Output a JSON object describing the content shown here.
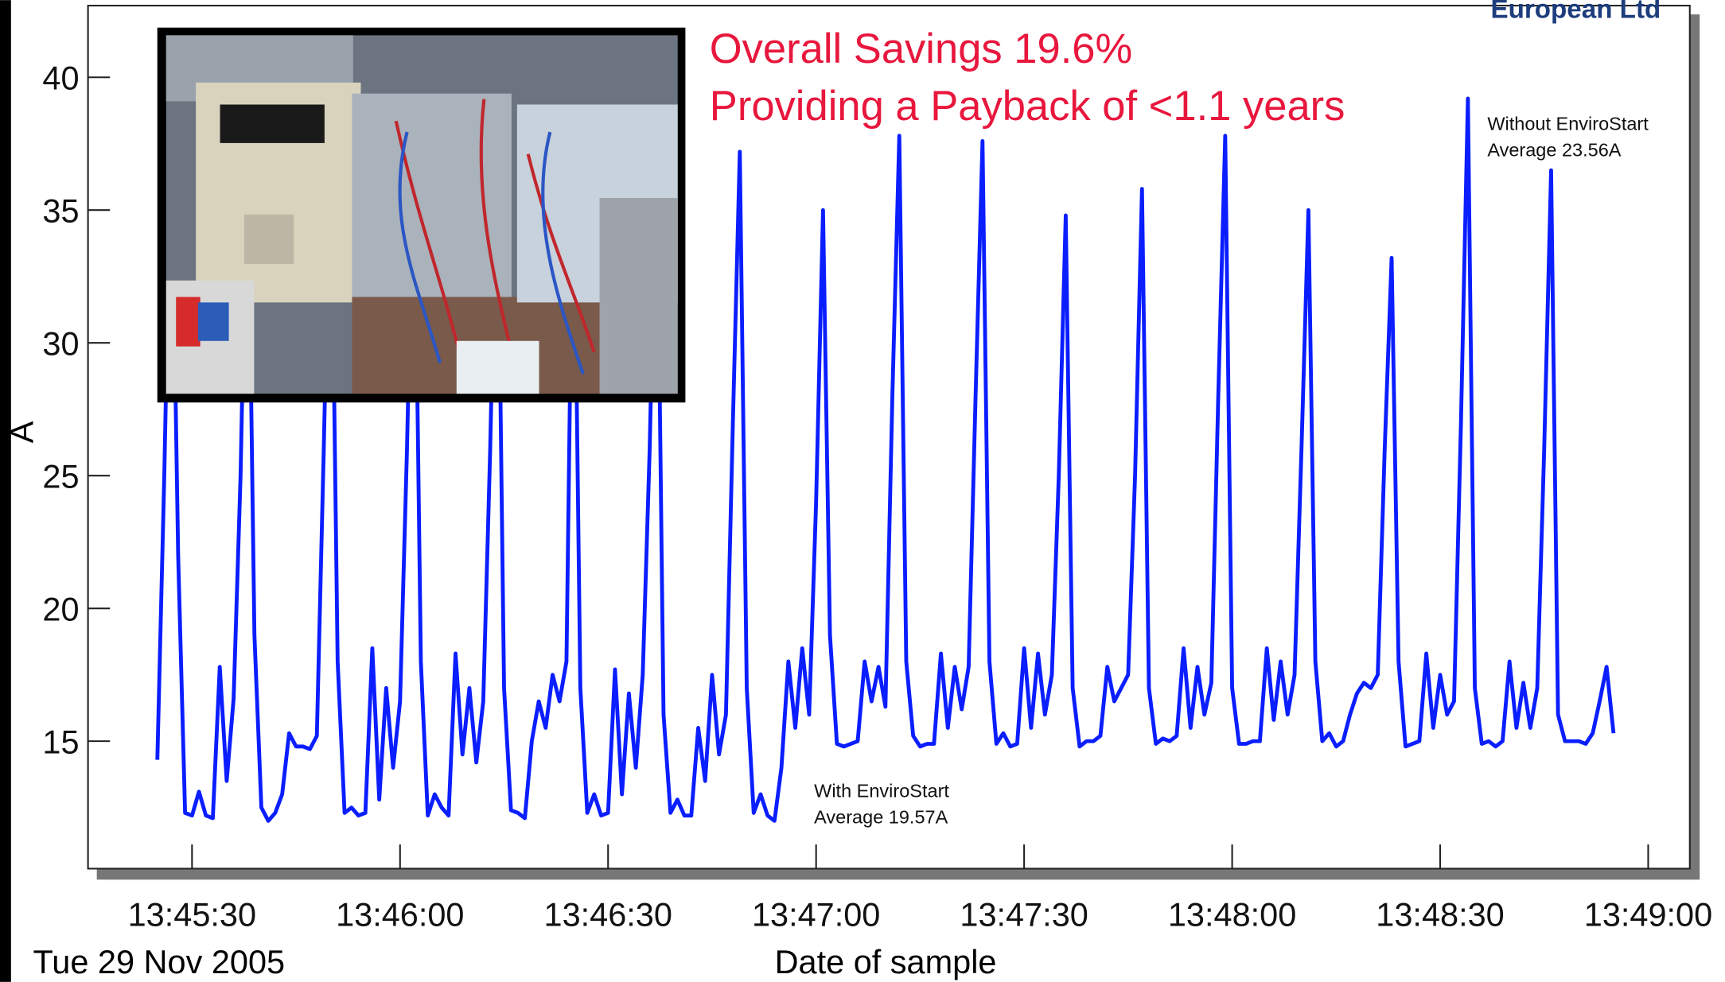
{
  "logo": "European Ltd",
  "chart_data": {
    "type": "line",
    "color": "#0a1eff",
    "annotations": [
      "Overall Savings 19.6%",
      "Providing a Payback of <1.1 years",
      "Without EnviroStart",
      "Average 23.56A",
      "With EnviroStart",
      "Average 19.57A"
    ],
    "ylabel": "A",
    "xlabel": "Date of sample",
    "date_label": "Tue 29 Nov 2005",
    "xlim": [
      "13:45:15",
      "13:49:06"
    ],
    "xticks": [
      "13:45:30",
      "13:46:00",
      "13:46:30",
      "13:47:00",
      "13:47:30",
      "13:48:00",
      "13:48:30",
      "13:49:00"
    ],
    "ylim": [
      10.2,
      42.7
    ],
    "yticks": [
      15,
      20,
      25,
      30,
      35,
      40
    ],
    "x": [
      "13:45:25",
      "13:45:26",
      "13:45:27",
      "13:45:28",
      "13:45:29",
      "13:45:30",
      "13:45:31",
      "13:45:32",
      "13:45:33",
      "13:45:34",
      "13:45:35",
      "13:45:36",
      "13:45:37",
      "13:45:38",
      "13:45:39",
      "13:45:40",
      "13:45:41",
      "13:45:42",
      "13:45:43",
      "13:45:44",
      "13:45:45",
      "13:45:46",
      "13:45:47",
      "13:45:48",
      "13:45:49",
      "13:45:50",
      "13:45:51",
      "13:45:52",
      "13:45:53",
      "13:45:54",
      "13:45:55",
      "13:45:56",
      "13:45:57",
      "13:45:58",
      "13:45:59",
      "13:46:00",
      "13:46:01",
      "13:46:02",
      "13:46:03",
      "13:46:04",
      "13:46:05",
      "13:46:06",
      "13:46:07",
      "13:46:08",
      "13:46:09",
      "13:46:10",
      "13:46:11",
      "13:46:12",
      "13:46:13",
      "13:46:14",
      "13:46:15",
      "13:46:16",
      "13:46:17",
      "13:46:18",
      "13:46:19",
      "13:46:20",
      "13:46:21",
      "13:46:22",
      "13:46:23",
      "13:46:24",
      "13:46:25",
      "13:46:26",
      "13:46:27",
      "13:46:28",
      "13:46:29",
      "13:46:30",
      "13:46:31",
      "13:46:32",
      "13:46:33",
      "13:46:34",
      "13:46:35",
      "13:46:36",
      "13:46:37",
      "13:46:38",
      "13:46:39",
      "13:46:40",
      "13:46:41",
      "13:46:42",
      "13:46:43",
      "13:46:44",
      "13:46:45",
      "13:46:46",
      "13:46:47",
      "13:46:48",
      "13:46:49",
      "13:46:50",
      "13:46:51",
      "13:46:52",
      "13:46:53",
      "13:46:54",
      "13:46:55",
      "13:46:56",
      "13:46:57",
      "13:46:58",
      "13:46:59",
      "13:47:00",
      "13:47:01",
      "13:47:02",
      "13:47:03",
      "13:47:04",
      "13:47:05",
      "13:47:06",
      "13:47:07",
      "13:47:08",
      "13:47:09",
      "13:47:10",
      "13:47:11",
      "13:47:12",
      "13:47:13",
      "13:47:14",
      "13:47:15",
      "13:47:16",
      "13:47:17",
      "13:47:18",
      "13:47:19",
      "13:47:20",
      "13:47:21",
      "13:47:22",
      "13:47:23",
      "13:47:24",
      "13:47:25",
      "13:47:26",
      "13:47:27",
      "13:47:28",
      "13:47:29",
      "13:47:30",
      "13:47:31",
      "13:47:32",
      "13:47:33",
      "13:47:34",
      "13:47:35",
      "13:47:36",
      "13:47:37",
      "13:47:38",
      "13:47:39",
      "13:47:40",
      "13:47:41",
      "13:47:42",
      "13:47:43",
      "13:47:44",
      "13:47:45",
      "13:47:46",
      "13:47:47",
      "13:47:48",
      "13:47:49",
      "13:47:50",
      "13:47:51",
      "13:47:52",
      "13:47:53",
      "13:47:54",
      "13:47:55",
      "13:47:56",
      "13:47:57",
      "13:47:58",
      "13:47:59",
      "13:48:00",
      "13:48:01",
      "13:48:02",
      "13:48:03",
      "13:48:04",
      "13:48:05",
      "13:48:06",
      "13:48:07",
      "13:48:08",
      "13:48:09",
      "13:48:10",
      "13:48:11",
      "13:48:12",
      "13:48:13",
      "13:48:14",
      "13:48:15",
      "13:48:16",
      "13:48:17",
      "13:48:18",
      "13:48:19",
      "13:48:20",
      "13:48:21",
      "13:48:22",
      "13:48:23",
      "13:48:24",
      "13:48:25",
      "13:48:26",
      "13:48:27",
      "13:48:28",
      "13:48:29",
      "13:48:30",
      "13:48:31",
      "13:48:32",
      "13:48:33",
      "13:48:34",
      "13:48:35",
      "13:48:36",
      "13:48:37",
      "13:48:38",
      "13:48:39",
      "13:48:40",
      "13:48:41",
      "13:48:42",
      "13:48:43",
      "13:48:44",
      "13:48:45",
      "13:48:46",
      "13:48:47",
      "13:48:48",
      "13:48:49",
      "13:48:50",
      "13:48:51",
      "13:48:52",
      "13:48:53",
      "13:48:54",
      "13:48:55"
    ],
    "values": [
      14.3,
      25,
      38,
      22,
      12.3,
      12.2,
      13.1,
      12.2,
      12.1,
      17.8,
      13.5,
      16.6,
      25,
      38,
      19,
      12.5,
      12.0,
      12.3,
      13.0,
      15.3,
      14.8,
      14.8,
      14.7,
      15.2,
      26,
      38,
      18,
      12.3,
      12.5,
      12.2,
      12.3,
      18.5,
      12.8,
      17.0,
      14.0,
      16.5,
      26,
      38,
      18,
      12.2,
      13.0,
      12.5,
      12.2,
      18.3,
      14.5,
      17.0,
      14.2,
      16.5,
      26,
      38,
      17,
      12.4,
      12.3,
      12.1,
      15.0,
      16.5,
      15.5,
      17.5,
      16.5,
      18.0,
      38,
      17,
      12.3,
      13.0,
      12.2,
      12.3,
      17.7,
      13.0,
      16.8,
      14.0,
      17.5,
      26,
      38,
      16,
      12.3,
      12.8,
      12.2,
      12.2,
      15.5,
      13.5,
      17.5,
      14.5,
      16.0,
      27,
      37.2,
      17,
      12.3,
      13.0,
      12.2,
      12.0,
      14.0,
      18.0,
      15.5,
      18.5,
      16.0,
      24,
      35.0,
      19,
      14.9,
      14.8,
      14.9,
      15.0,
      18.0,
      16.5,
      17.8,
      16.3,
      28,
      37.8,
      18,
      15.2,
      14.8,
      14.9,
      14.9,
      18.3,
      15.5,
      17.8,
      16.2,
      17.8,
      28,
      37.6,
      18,
      14.9,
      15.3,
      14.8,
      14.9,
      18.5,
      15.5,
      18.3,
      16.0,
      17.5,
      25,
      34.8,
      17,
      14.8,
      15.0,
      15.0,
      15.2,
      17.8,
      16.5,
      17.0,
      17.5,
      25,
      35.8,
      17,
      14.9,
      15.1,
      15.0,
      15.2,
      18.5,
      15.5,
      17.8,
      16.0,
      17.2,
      28,
      37.8,
      17,
      14.9,
      14.9,
      15.0,
      15.0,
      18.5,
      15.8,
      18.0,
      16.0,
      17.5,
      26,
      35.0,
      18,
      15.0,
      15.3,
      14.8,
      15.0,
      16.0,
      16.8,
      17.2,
      17.0,
      17.5,
      26,
      33.2,
      18,
      14.8,
      14.9,
      15.0,
      18.3,
      15.5,
      17.5,
      16.0,
      16.5,
      27,
      39.2,
      17,
      14.9,
      15.0,
      14.8,
      15.0,
      18.0,
      15.5,
      17.2,
      15.5,
      17.0,
      26,
      36.5,
      16,
      15.0,
      15.0,
      15.0,
      14.9,
      15.3,
      16.5,
      17.8,
      15.3
    ]
  }
}
